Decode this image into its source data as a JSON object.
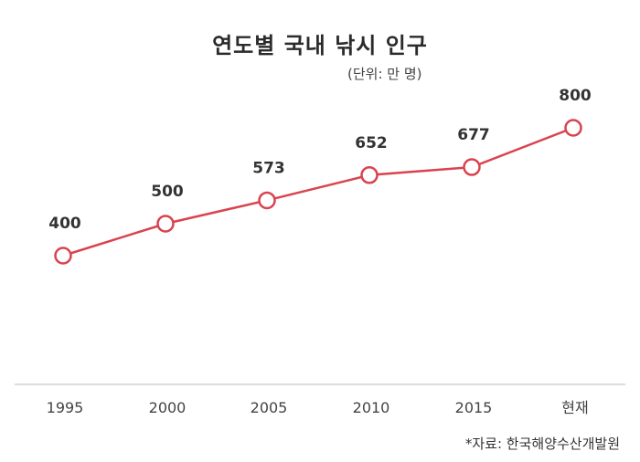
{
  "chart_data": {
    "type": "line",
    "title": "연도별 국내 낚시 인구",
    "subtitle": "(단위: 만 명)",
    "categories": [
      "1995",
      "2000",
      "2005",
      "2010",
      "2015",
      "현재"
    ],
    "series": [
      {
        "name": "국내 낚시 인구",
        "values": [
          400,
          500,
          573,
          652,
          677,
          800
        ]
      }
    ],
    "xlabel": "",
    "ylabel": "",
    "data_labels": [
      "400",
      "500",
      "573",
      "652",
      "677",
      "800"
    ],
    "grid": false,
    "legend": "none",
    "annotation": "*자료: 한국해양수산개발원",
    "colors": {
      "line": "#d9434f",
      "marker_fill": "#ffffff",
      "axis": "#dddddd"
    }
  },
  "header": {
    "title": "연도별 국내 낚시 인구",
    "unit": "(단위: 만 명)"
  },
  "footer": {
    "source": "*자료: 한국해양수산개발원"
  }
}
